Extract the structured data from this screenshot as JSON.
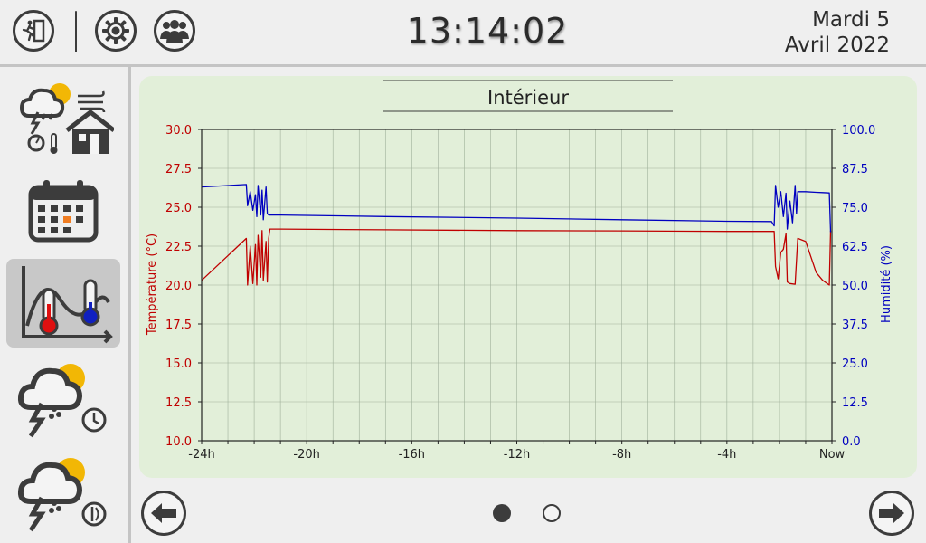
{
  "header": {
    "time": "13:14:02",
    "date_line1": "Mardi 5",
    "date_line2": "Avril 2022",
    "buttons": [
      "exit-icon",
      "gear-icon",
      "users-icon"
    ]
  },
  "sidebar": {
    "items": [
      {
        "name": "sidebar-item-weather-overview",
        "icon": "weather-house-icon",
        "active": false
      },
      {
        "name": "sidebar-item-calendar",
        "icon": "calendar-icon",
        "active": false
      },
      {
        "name": "sidebar-item-graphs",
        "icon": "temperature-humidity-graph-icon",
        "active": true
      },
      {
        "name": "sidebar-item-forecast-hourly",
        "icon": "storm-clock-icon",
        "active": false
      },
      {
        "name": "sidebar-item-forecast-daily",
        "icon": "storm-gauge-icon",
        "active": false
      }
    ]
  },
  "colors": {
    "temperature": "#c00000",
    "humidity": "#0000c0",
    "panel": "#e2efd9",
    "sun": "#f2b705"
  },
  "chart_data": {
    "type": "line",
    "title": "Intérieur",
    "ylabel": "Température (°C)",
    "y2label": "Humidité (%)",
    "x_ticks": [
      "-24h",
      "-20h",
      "-16h",
      "-12h",
      "-8h",
      "-4h",
      "Now"
    ],
    "xlim": [
      -24,
      0
    ],
    "ylim": [
      10.0,
      30.0
    ],
    "y_ticks": [
      "10.0",
      "12.5",
      "15.0",
      "17.5",
      "20.0",
      "22.5",
      "25.0",
      "27.5",
      "30.0"
    ],
    "y2lim": [
      0.0,
      100.0
    ],
    "y2_ticks": [
      "0.0",
      "12.5",
      "25.0",
      "37.5",
      "50.0",
      "62.5",
      "75.0",
      "87.5",
      "100.0"
    ],
    "grid": true,
    "series": [
      {
        "name": "Température (°C)",
        "axis": "left",
        "x": [
          -24.0,
          -22.3,
          -22.25,
          -22.15,
          -22.05,
          -21.95,
          -21.9,
          -21.85,
          -21.75,
          -21.7,
          -21.65,
          -21.55,
          -21.5,
          -21.45,
          -21.4,
          -21.0,
          -17.0,
          -12.0,
          -8.0,
          -4.0,
          -2.2,
          -2.15,
          -2.05,
          -1.95,
          -1.85,
          -1.75,
          -1.7,
          -1.6,
          -1.4,
          -1.3,
          -1.0,
          -0.6,
          -0.35,
          -0.1,
          -0.05
        ],
        "y": [
          20.3,
          23.0,
          20.0,
          22.5,
          20.1,
          22.6,
          20.0,
          23.2,
          20.5,
          23.5,
          20.3,
          22.8,
          20.2,
          23.0,
          23.6,
          23.6,
          23.55,
          23.5,
          23.48,
          23.45,
          23.45,
          21.2,
          20.4,
          22.1,
          22.3,
          23.3,
          20.2,
          20.1,
          20.05,
          23.0,
          22.8,
          20.8,
          20.3,
          20.0,
          23.5
        ]
      },
      {
        "name": "Humidité (%)",
        "axis": "right",
        "x": [
          -24.0,
          -22.3,
          -22.25,
          -22.15,
          -22.05,
          -21.95,
          -21.9,
          -21.85,
          -21.75,
          -21.7,
          -21.65,
          -21.55,
          -21.5,
          -21.45,
          -21.4,
          -21.0,
          -17.0,
          -12.0,
          -8.0,
          -4.0,
          -2.3,
          -2.2,
          -2.15,
          -2.05,
          -1.95,
          -1.85,
          -1.75,
          -1.7,
          -1.6,
          -1.5,
          -1.4,
          -1.35,
          -1.3,
          -1.0,
          -0.6,
          -0.35,
          -0.1,
          -0.05
        ],
        "y": [
          81.5,
          82.3,
          75.5,
          80.0,
          74.0,
          79.0,
          72.0,
          82.0,
          72.5,
          80.5,
          71.0,
          81.5,
          73.0,
          72.5,
          72.5,
          72.5,
          72.0,
          71.5,
          71.0,
          70.5,
          70.4,
          69.0,
          82.0,
          75.0,
          80.0,
          72.0,
          79.5,
          68.0,
          77.0,
          70.0,
          82.0,
          73.0,
          80.0,
          80.0,
          79.8,
          79.7,
          79.6,
          67.0
        ]
      }
    ]
  }
}
